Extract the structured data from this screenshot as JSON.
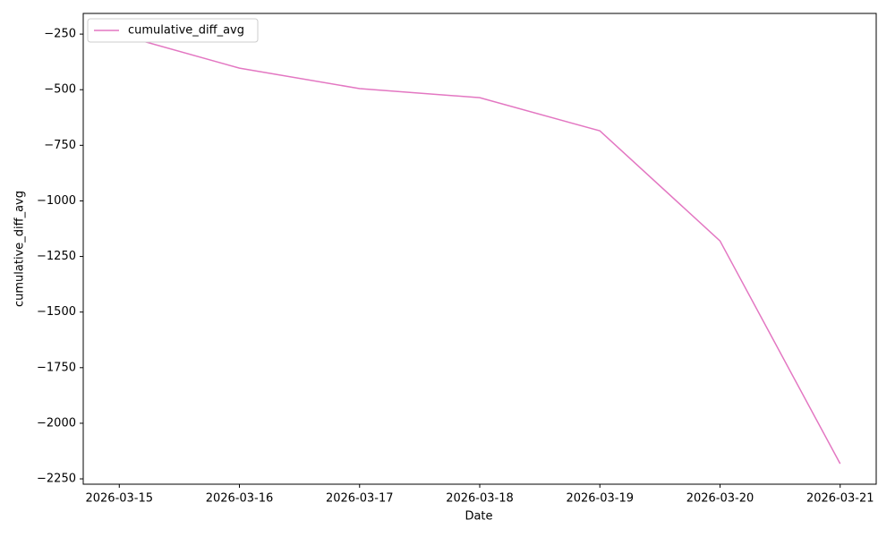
{
  "chart_data": {
    "type": "line",
    "x_label": "Date",
    "y_label": "cumulative_diff_avg",
    "x": [
      "2026-03-15",
      "2026-03-16",
      "2026-03-17",
      "2026-03-18",
      "2026-03-19",
      "2026-03-20",
      "2026-03-21"
    ],
    "series": [
      {
        "name": "cumulative_diff_avg",
        "color": "#e377c2",
        "values": [
          -252,
          -403,
          -495,
          -536,
          -685,
          -1180,
          -2182
        ]
      }
    ],
    "xlim": [
      "2026-03-14T16:48:00Z",
      "2026-03-21T07:12:00Z"
    ],
    "xticks": [
      "2026-03-15",
      "2026-03-16",
      "2026-03-17",
      "2026-03-18",
      "2026-03-19",
      "2026-03-20",
      "2026-03-21"
    ],
    "ylim": [
      -2274,
      -157
    ],
    "yticks": [
      {
        "value": -2250,
        "label": "−2250"
      },
      {
        "value": -2000,
        "label": "−2000"
      },
      {
        "value": -1750,
        "label": "−1750"
      },
      {
        "value": -1500,
        "label": "−1500"
      },
      {
        "value": -1250,
        "label": "−1250"
      },
      {
        "value": -1000,
        "label": "−1000"
      },
      {
        "value": -750,
        "label": "−750"
      },
      {
        "value": -500,
        "label": "−500"
      },
      {
        "value": -250,
        "label": "−250"
      }
    ],
    "legend": "upper left",
    "grid": false
  }
}
